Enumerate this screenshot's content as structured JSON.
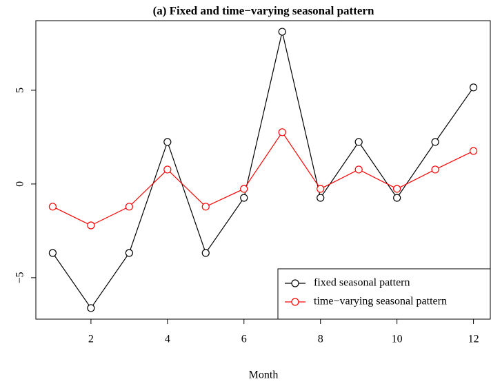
{
  "chart_data": {
    "type": "line",
    "title": "(a) Fixed and time−varying seasonal pattern",
    "x_label": "Month",
    "x": [
      1,
      2,
      3,
      4,
      5,
      6,
      7,
      8,
      9,
      10,
      11,
      12
    ],
    "series": [
      {
        "name": "fixed seasonal pattern",
        "color": "#000000",
        "values": [
          -3.68,
          -6.62,
          -3.68,
          2.24,
          -3.68,
          -0.74,
          8.12,
          -0.74,
          2.24,
          -0.74,
          2.24,
          5.15
        ]
      },
      {
        "name": "time−varying seasonal pattern",
        "color": "#ff0000",
        "values": [
          -1.21,
          -2.21,
          -1.21,
          0.77,
          -1.21,
          -0.26,
          2.76,
          -0.26,
          0.77,
          -0.26,
          0.77,
          1.76
        ]
      }
    ],
    "xlim": [
      0.56,
      12.44
    ],
    "xticks": [
      2,
      4,
      6,
      8,
      10,
      12
    ],
    "ylim": [
      -7.21,
      8.71
    ],
    "yticks": [
      {
        "value": -5,
        "label": "−5"
      },
      0,
      5
    ],
    "legend": "bottom-right"
  }
}
